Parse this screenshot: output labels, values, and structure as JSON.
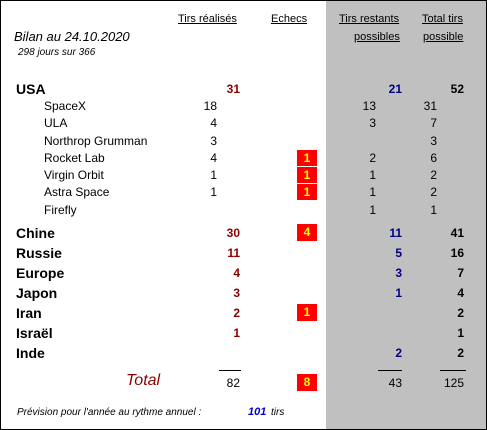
{
  "header": {
    "title": "Bilan au 24.10.2020",
    "days": "298  jours sur 366",
    "col_tirs": "Tirs réalisés",
    "col_echecs": "Echecs",
    "col_restants_1": "Tirs restants",
    "col_restants_2": "possibles",
    "col_total_1": "Total tirs",
    "col_total_2": "possible"
  },
  "countries": [
    {
      "name": "USA",
      "tirs": "31",
      "echecs": "",
      "restants": "21",
      "total": "52"
    },
    {
      "name": "Chine",
      "tirs": "30",
      "echecs": "4",
      "restants": "11",
      "total": "41"
    },
    {
      "name": "Russie",
      "tirs": "11",
      "echecs": "",
      "restants": "5",
      "total": "16"
    },
    {
      "name": "Europe",
      "tirs": "4",
      "echecs": "",
      "restants": "3",
      "total": "7"
    },
    {
      "name": "Japon",
      "tirs": "3",
      "echecs": "",
      "restants": "1",
      "total": "4"
    },
    {
      "name": "Iran",
      "tirs": "2",
      "echecs": "1",
      "restants": "",
      "total": "2"
    },
    {
      "name": "Israël",
      "tirs": "1",
      "echecs": "",
      "restants": "",
      "total": "1"
    },
    {
      "name": "Inde",
      "tirs": "",
      "echecs": "",
      "restants": "2",
      "total": "2"
    }
  ],
  "usa_companies": [
    {
      "name": "SpaceX",
      "tirs": "18",
      "echecs": "",
      "restants": "13",
      "total": "31"
    },
    {
      "name": "ULA",
      "tirs": "4",
      "echecs": "",
      "restants": "3",
      "total": "7"
    },
    {
      "name": "Northrop Grumman",
      "tirs": "3",
      "echecs": "",
      "restants": "",
      "total": "3"
    },
    {
      "name": "Rocket Lab",
      "tirs": "4",
      "echecs": "1",
      "restants": "2",
      "total": "6"
    },
    {
      "name": "Virgin Orbit",
      "tirs": "1",
      "echecs": "1",
      "restants": "1",
      "total": "2"
    },
    {
      "name": "Astra Space",
      "tirs": "1",
      "echecs": "1",
      "restants": "1",
      "total": "2"
    },
    {
      "name": "Firefly",
      "tirs": "",
      "echecs": "",
      "restants": "1",
      "total": "1"
    }
  ],
  "total": {
    "label": "Total",
    "tirs": "82",
    "echecs": "8",
    "restants": "43",
    "total": "125"
  },
  "footer": {
    "text": "Prévision pour l'année au rythme annuel :",
    "value": "101",
    "unit": "tirs"
  },
  "colors": {
    "gray": "#c0c0c0",
    "fail_bg": "#ff0000",
    "fail_fg": "#ffff00",
    "red": "#8b0000",
    "blue": "#000080"
  }
}
